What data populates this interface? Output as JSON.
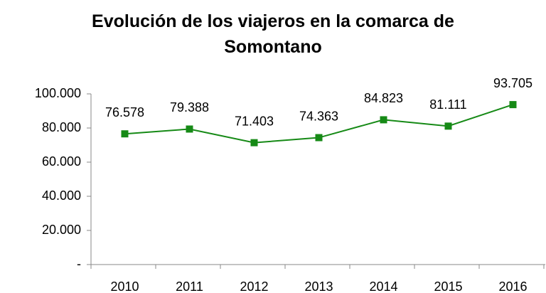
{
  "chart_data": {
    "type": "line",
    "title": "Evolución de los viajeros en la comarca de Somontano",
    "categories": [
      "2010",
      "2011",
      "2012",
      "2013",
      "2014",
      "2015",
      "2016"
    ],
    "series": [
      {
        "name": "Viajeros",
        "color": "#168a16",
        "values": [
          76578,
          79388,
          71403,
          74363,
          84823,
          81111,
          93705
        ],
        "value_labels": [
          "76.578",
          "79.388",
          "71.403",
          "74.363",
          "84.823",
          "81.111",
          "93.705"
        ]
      }
    ],
    "ylim": [
      0,
      100000
    ],
    "yticks": [
      {
        "value": 0,
        "label": "-"
      },
      {
        "value": 20000,
        "label": "20.000"
      },
      {
        "value": 40000,
        "label": "40.000"
      },
      {
        "value": 60000,
        "label": "60.000"
      },
      {
        "value": 80000,
        "label": "80.000"
      },
      {
        "value": 100000,
        "label": "100.000"
      }
    ],
    "grid": false
  }
}
